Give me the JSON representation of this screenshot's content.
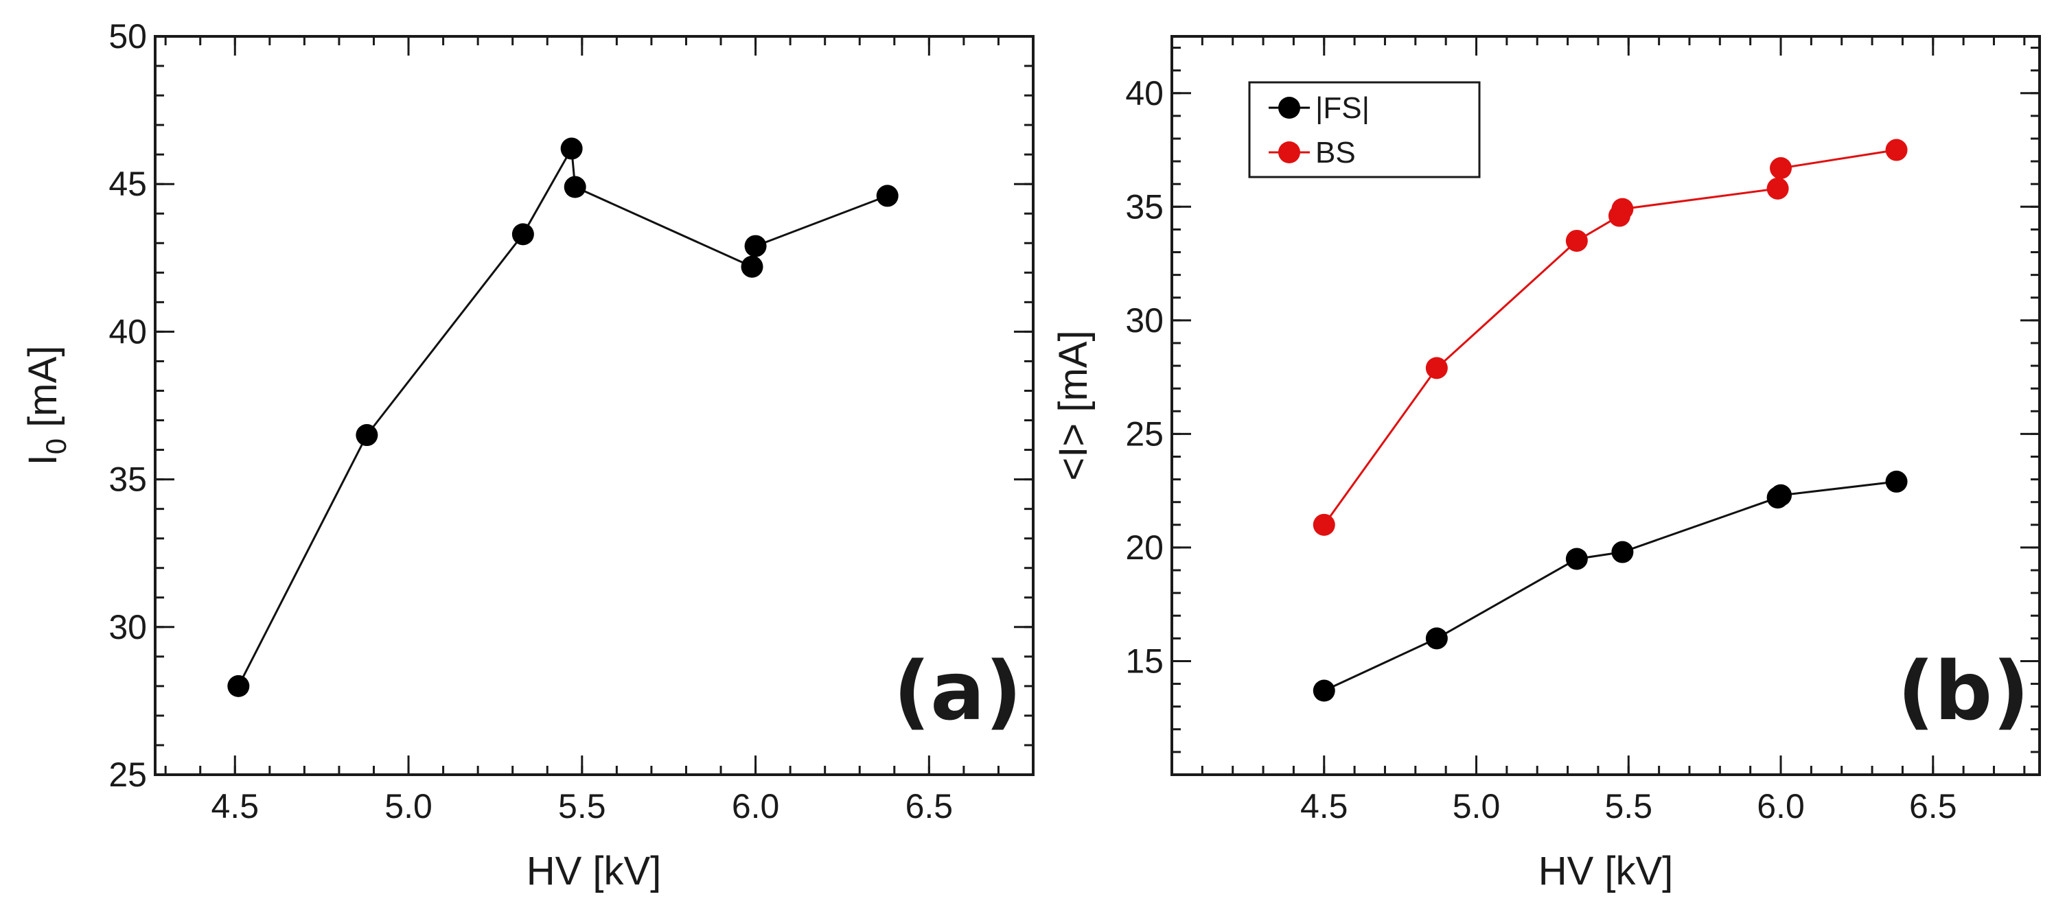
{
  "chart_data": [
    {
      "type": "line",
      "panel_label": "(a)",
      "xlabel": "HV [kV]",
      "ylabel_main": "I",
      "ylabel_sub": "0",
      "ylabel_unit": " [mA]",
      "xlim": [
        4.27,
        6.8
      ],
      "ylim": [
        25,
        50
      ],
      "xticks": [
        "4.5",
        "5.0",
        "5.5",
        "6.0",
        "6.5"
      ],
      "yticks": [
        "25",
        "30",
        "35",
        "40",
        "45",
        "50"
      ],
      "series": [
        {
          "name": "I0",
          "color": "#000000",
          "x": [
            4.51,
            4.88,
            5.33,
            5.47,
            5.48,
            5.99,
            6.0,
            6.38
          ],
          "y": [
            28.0,
            36.5,
            43.3,
            46.2,
            44.9,
            42.2,
            42.9,
            44.6
          ]
        }
      ]
    },
    {
      "type": "line",
      "panel_label": "(b)",
      "xlabel": "HV [kV]",
      "ylabel": "<I> [mA]",
      "xlim": [
        4.0,
        6.85
      ],
      "ylim": [
        10,
        42.5
      ],
      "xticks": [
        "4.5",
        "5.0",
        "5.5",
        "6.0",
        "6.5"
      ],
      "yticks": [
        "15",
        "20",
        "25",
        "30",
        "35",
        "40"
      ],
      "legend_position": "top-left",
      "series": [
        {
          "name": "|FS|",
          "color": "#000000",
          "x": [
            4.5,
            4.87,
            5.33,
            5.48,
            5.99,
            6.0,
            6.38
          ],
          "y": [
            13.7,
            16.0,
            19.5,
            19.8,
            22.2,
            22.3,
            22.9
          ]
        },
        {
          "name": "BS",
          "color": "#e01010",
          "x": [
            4.5,
            4.87,
            5.33,
            5.47,
            5.48,
            5.99,
            6.0,
            6.38
          ],
          "y": [
            21.0,
            27.9,
            33.5,
            34.6,
            34.9,
            35.8,
            36.7,
            37.5
          ]
        }
      ]
    }
  ]
}
